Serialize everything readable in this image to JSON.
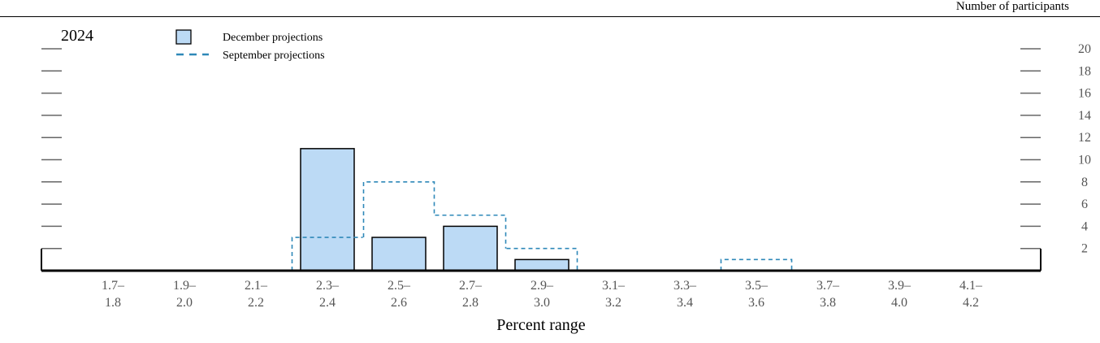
{
  "chart_data": {
    "type": "bar",
    "title": "2024",
    "top_right_label": "Number of participants",
    "xlabel": "Percent range",
    "ylabel": "",
    "ylim": [
      0,
      20
    ],
    "yticks": [
      "2",
      "4",
      "6",
      "8",
      "10",
      "12",
      "14",
      "16",
      "18",
      "20"
    ],
    "categories": [
      {
        "top": "1.7–",
        "bottom": "1.8"
      },
      {
        "top": "1.9–",
        "bottom": "2.0"
      },
      {
        "top": "2.1–",
        "bottom": "2.2"
      },
      {
        "top": "2.3–",
        "bottom": "2.4"
      },
      {
        "top": "2.5–",
        "bottom": "2.6"
      },
      {
        "top": "2.7–",
        "bottom": "2.8"
      },
      {
        "top": "2.9–",
        "bottom": "3.0"
      },
      {
        "top": "3.1–",
        "bottom": "3.2"
      },
      {
        "top": "3.3–",
        "bottom": "3.4"
      },
      {
        "top": "3.5–",
        "bottom": "3.6"
      },
      {
        "top": "3.7–",
        "bottom": "3.8"
      },
      {
        "top": "3.9–",
        "bottom": "4.0"
      },
      {
        "top": "4.1–",
        "bottom": "4.2"
      }
    ],
    "series": [
      {
        "name": "December projections",
        "style": "bar",
        "values": [
          0,
          0,
          0,
          11,
          3,
          4,
          1,
          0,
          0,
          0,
          0,
          0,
          0
        ]
      },
      {
        "name": "September projections",
        "style": "dashed-step",
        "values": [
          0,
          0,
          0,
          3,
          8,
          5,
          2,
          0,
          0,
          1,
          0,
          0,
          0
        ]
      }
    ],
    "legend_position": "top-left",
    "grid": false
  },
  "colors": {
    "bar_fill": "#bcdaf5",
    "bar_stroke": "#000000",
    "dashed_line": "#2e88b8",
    "axis": "#000000",
    "tick": "#666666"
  }
}
